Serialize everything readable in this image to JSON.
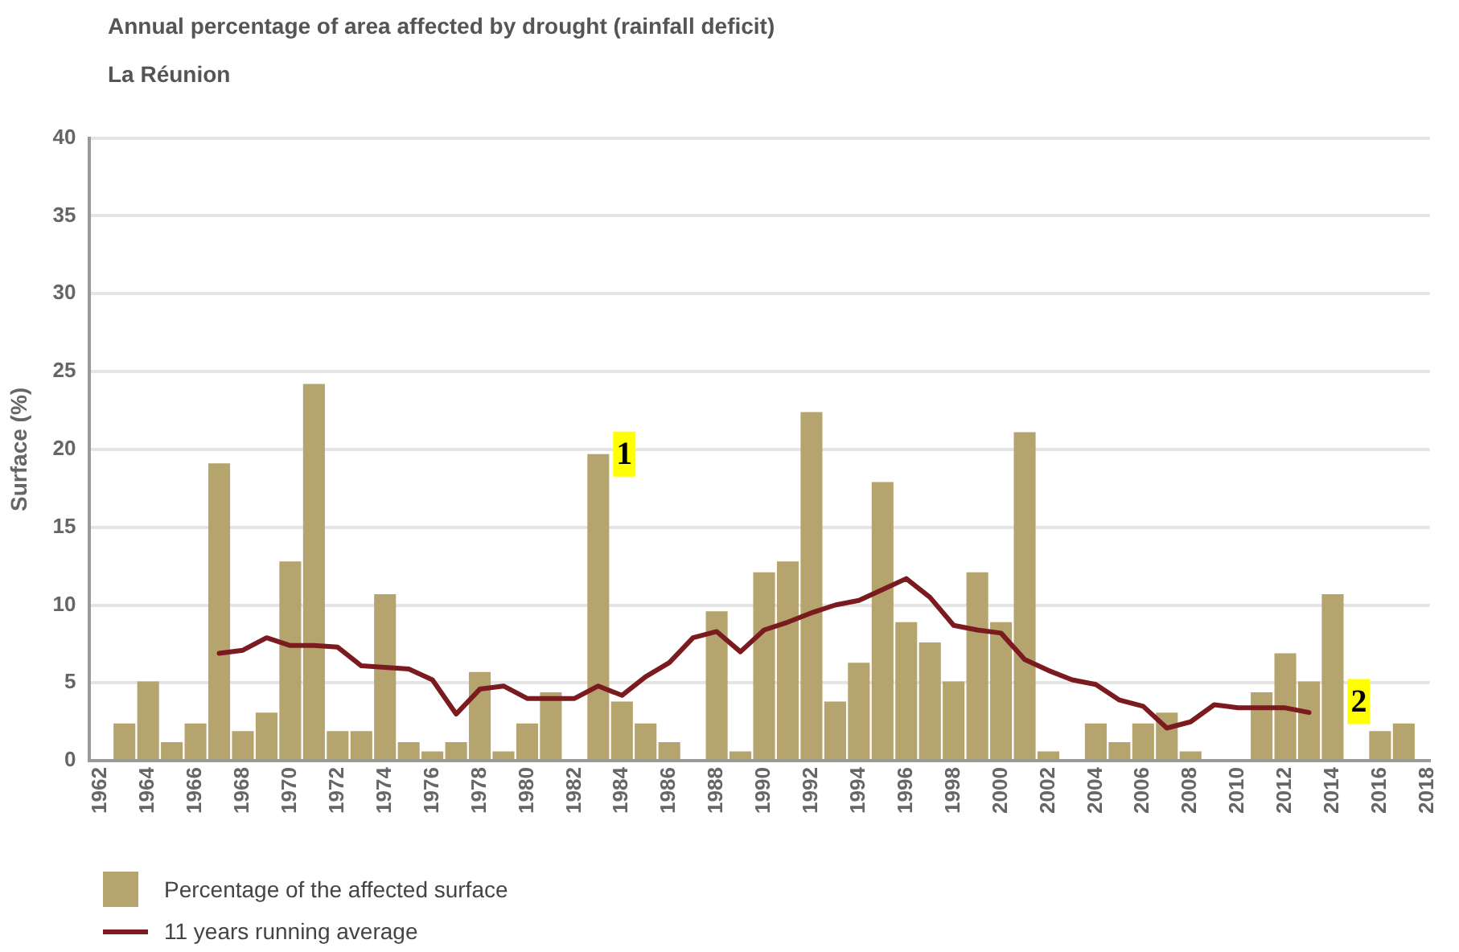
{
  "chart_data": {
    "type": "bar",
    "title": "Annual percentage of area affected by drought (rainfall deficit)",
    "subtitle": "La Réunion",
    "ylabel": "Surface (%)",
    "x": [
      1963,
      1964,
      1965,
      1966,
      1967,
      1968,
      1969,
      1970,
      1971,
      1972,
      1973,
      1974,
      1975,
      1976,
      1977,
      1978,
      1979,
      1980,
      1981,
      1982,
      1983,
      1984,
      1985,
      1986,
      1987,
      1988,
      1989,
      1990,
      1991,
      1992,
      1993,
      1994,
      1995,
      1996,
      1997,
      1998,
      1999,
      2000,
      2001,
      2002,
      2003,
      2004,
      2005,
      2006,
      2007,
      2008,
      2009,
      2010,
      2011,
      2012,
      2013,
      2014,
      2015,
      2016,
      2017
    ],
    "series": [
      {
        "name": "Percentage of the affected surface",
        "color": "#b5a46e",
        "values": [
          2.4,
          5.1,
          1.2,
          2.4,
          19.1,
          1.9,
          3.1,
          12.8,
          24.2,
          1.9,
          1.9,
          10.7,
          1.2,
          0.6,
          1.2,
          5.7,
          0.6,
          2.4,
          4.4,
          null,
          19.7,
          3.8,
          2.4,
          1.2,
          null,
          9.6,
          0.6,
          12.1,
          12.8,
          22.4,
          3.8,
          6.3,
          17.9,
          8.9,
          7.6,
          5.1,
          12.1,
          8.9,
          21.1,
          0.6,
          null,
          2.4,
          1.2,
          2.4,
          3.1,
          0.6,
          null,
          null,
          4.4,
          6.9,
          5.1,
          10.7,
          null,
          1.9,
          2.4
        ]
      },
      {
        "name": "11 years running average",
        "type": "line",
        "color": "#7b1a1f",
        "values": [
          null,
          null,
          null,
          null,
          6.9,
          7.1,
          7.9,
          7.4,
          7.4,
          7.3,
          6.1,
          6.0,
          5.9,
          5.2,
          3.0,
          4.6,
          4.8,
          4.0,
          4.0,
          4.0,
          4.8,
          4.2,
          5.4,
          6.3,
          7.9,
          8.3,
          7.0,
          8.4,
          8.9,
          9.5,
          10.0,
          10.3,
          11.0,
          11.7,
          10.5,
          8.7,
          8.4,
          8.2,
          6.5,
          5.8,
          5.2,
          4.9,
          3.9,
          3.5,
          2.1,
          2.5,
          3.6,
          3.4,
          3.4,
          3.4,
          3.1,
          null,
          null,
          null,
          null
        ]
      }
    ],
    "xlim": [
      1961.5,
      2018.1
    ],
    "xticks": [
      1962,
      1964,
      1966,
      1968,
      1970,
      1972,
      1974,
      1976,
      1978,
      1980,
      1982,
      1984,
      1986,
      1988,
      1990,
      1992,
      1994,
      1996,
      1998,
      2000,
      2002,
      2004,
      2006,
      2008,
      2010,
      2012,
      2014,
      2016,
      2018
    ],
    "ylim": [
      0,
      40
    ],
    "yticks": [
      0,
      5,
      10,
      15,
      20,
      25,
      30,
      35,
      40
    ],
    "grid": "y",
    "legend": "bottom",
    "marker": "none",
    "line_style": "solid",
    "annotations": [
      {
        "text": "1",
        "x": 1984.1,
        "y": 19.7
      },
      {
        "text": "2",
        "x": 2015.1,
        "y": 3.8
      }
    ]
  }
}
